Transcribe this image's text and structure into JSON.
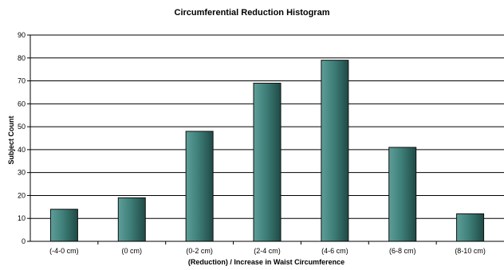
{
  "chart_data": {
    "type": "bar",
    "title": "Circumferential Reduction Histogram",
    "xlabel": "(Reduction) / Increase in Waist Circumference",
    "ylabel": "Subject Count",
    "categories": [
      "(-4-0 cm)",
      "(0 cm)",
      "(0-2 cm)",
      "(2-4 cm)",
      "(4-6 cm)",
      "(6-8 cm)",
      "(8-10 cm)"
    ],
    "values": [
      14,
      19,
      48,
      69,
      79,
      41,
      12
    ],
    "ylim": [
      0,
      90
    ],
    "yticks": [
      0,
      10,
      20,
      30,
      40,
      50,
      60,
      70,
      80,
      90
    ],
    "grid": true,
    "legend": "none",
    "colors": {
      "bar_light": "#5e9e98",
      "bar_mid": "#3f7f79",
      "bar_dark": "#1f4a46",
      "gridline": "#000000"
    }
  }
}
